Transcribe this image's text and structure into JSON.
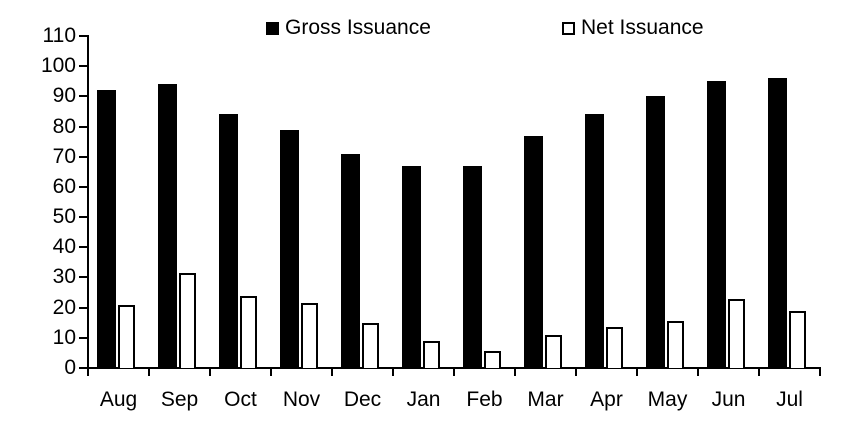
{
  "chart_data": {
    "type": "bar",
    "title": "",
    "categories": [
      "Aug",
      "Sep",
      "Oct",
      "Nov",
      "Dec",
      "Jan",
      "Feb",
      "Mar",
      "Apr",
      "May",
      "Jun",
      "Jul"
    ],
    "series": [
      {
        "name": "Gross Issuance",
        "fill": "#000000",
        "border": "#000000",
        "values": [
          92,
          94,
          84,
          79,
          71,
          67,
          67,
          77,
          84,
          90,
          95,
          96
        ]
      },
      {
        "name": "Net Issuance",
        "fill": "#ffffff",
        "border": "#000000",
        "values": [
          21,
          31.5,
          24,
          21.5,
          15,
          9,
          5.5,
          11,
          13.5,
          15.5,
          23,
          19
        ]
      }
    ],
    "ylim": [
      0,
      110
    ],
    "ytick_step": 10,
    "ytick_labels": [
      "0",
      "10",
      "20",
      "30",
      "40",
      "50",
      "60",
      "70",
      "80",
      "90",
      "100",
      "110"
    ],
    "xlabel": "",
    "ylabel": "",
    "grid": false,
    "legend_position": "top",
    "background_color": "#ffffff",
    "axis_color": "#000000"
  }
}
